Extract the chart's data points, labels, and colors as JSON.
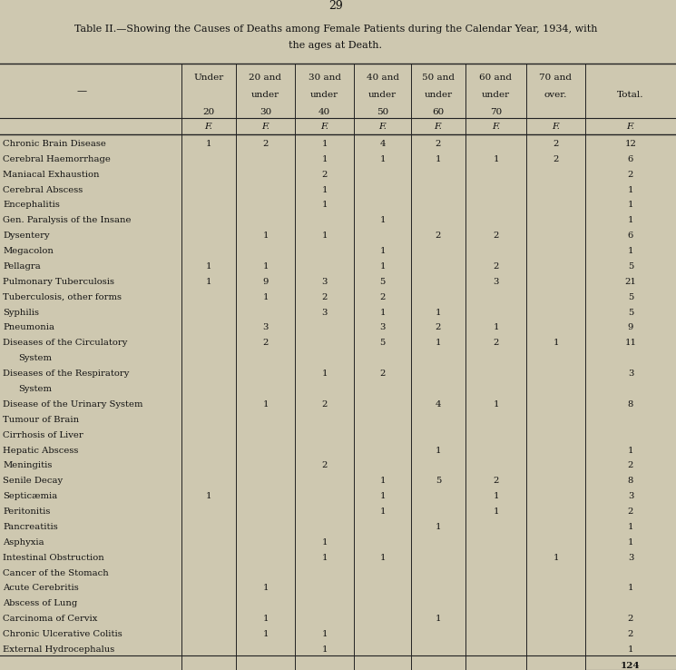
{
  "page_number": "29",
  "title_line1": "Table II.—Showing the Causes of Deaths among Female Patients during the Calendar Year, 1934, with",
  "title_line2": "the ages at Death.",
  "rows": [
    [
      "Chronic Brain Disease",
      "1",
      "2",
      "1",
      "4",
      "2",
      "",
      "2",
      "12"
    ],
    [
      "Cerebral Haemorrhage",
      "",
      "",
      "1",
      "1",
      "1",
      "1",
      "2",
      "6"
    ],
    [
      "Maniacal Exhaustion",
      "",
      "",
      "2",
      "",
      "",
      "",
      "",
      "2"
    ],
    [
      "Cerebral Abscess",
      "",
      "",
      "1",
      "",
      "",
      "",
      "",
      "1"
    ],
    [
      "Encephalitis",
      "",
      "",
      "1",
      "",
      "",
      "",
      "",
      "1"
    ],
    [
      "Gen. Paralysis of the Insane",
      "",
      "",
      "",
      "1",
      "",
      "",
      "",
      "1"
    ],
    [
      "Dysentery",
      "",
      "1",
      "1",
      "",
      "2",
      "2",
      "",
      "6"
    ],
    [
      "Megacolon",
      "",
      "",
      "",
      "1",
      "",
      "",
      "",
      "1"
    ],
    [
      "Pellagra",
      "1",
      "1",
      "",
      "1",
      "",
      "2",
      "",
      "5"
    ],
    [
      "Pulmonary Tuberculosis",
      "1",
      "9",
      "3",
      "5",
      "",
      "3",
      "",
      "21"
    ],
    [
      "Tuberculosis, other forms",
      "",
      "1",
      "2",
      "2",
      "",
      "",
      "",
      "5"
    ],
    [
      "Syphilis",
      "",
      "",
      "3",
      "1",
      "1",
      "",
      "",
      "5"
    ],
    [
      "Pneumonia",
      "",
      "3",
      "",
      "3",
      "2",
      "1",
      "",
      "9"
    ],
    [
      "Diseases of the Circulatory",
      "",
      "2",
      "",
      "5",
      "1",
      "2",
      "1",
      "11"
    ],
    [
      "  System",
      "",
      "",
      "",
      "",
      "",
      "",
      "",
      ""
    ],
    [
      "Diseases of the Respiratory",
      "",
      "",
      "1",
      "2",
      "",
      "",
      "",
      "3"
    ],
    [
      "  System",
      "",
      "",
      "",
      "",
      "",
      "",
      "",
      ""
    ],
    [
      "Disease of the Urinary System",
      "",
      "1",
      "2",
      "",
      "4",
      "1",
      "",
      "8"
    ],
    [
      "Tumour of Brain",
      "",
      "",
      "",
      "",
      "",
      "",
      "",
      ""
    ],
    [
      "Cirrhosis of Liver",
      "",
      "",
      "",
      "",
      "",
      "",
      "",
      ""
    ],
    [
      "Hepatic Abscess",
      "",
      "",
      "",
      "",
      "1",
      "",
      "",
      "1"
    ],
    [
      "Meningitis",
      "",
      "",
      "2",
      "",
      "",
      "",
      "",
      "2"
    ],
    [
      "Senile Decay",
      "",
      "",
      "",
      "1",
      "5",
      "2",
      "",
      "8"
    ],
    [
      "Septicæmia",
      "1",
      "",
      "",
      "1",
      "",
      "1",
      "",
      "3"
    ],
    [
      "Peritonitis",
      "",
      "",
      "",
      "1",
      "",
      "1",
      "",
      "2"
    ],
    [
      "Pancreatitis",
      "",
      "",
      "",
      "",
      "1",
      "",
      "",
      "1"
    ],
    [
      "Asphyxia",
      "",
      "",
      "1",
      "",
      "",
      "",
      "",
      "1"
    ],
    [
      "Intestinal Obstruction",
      "",
      "",
      "1",
      "1",
      "",
      "",
      "1",
      "3"
    ],
    [
      "Cancer of the Stomach",
      "",
      "",
      "",
      "",
      "",
      "",
      "",
      ""
    ],
    [
      "Acute Cerebritis",
      "",
      "1",
      "",
      "",
      "",
      "",
      "",
      "1"
    ],
    [
      "Abscess of Lung",
      "",
      "",
      "",
      "",
      "",
      "",
      "",
      ""
    ],
    [
      "Carcinoma of Cervix",
      "",
      "1",
      "",
      "",
      "1",
      "",
      "",
      "2"
    ],
    [
      "Chronic Ulcerative Colitis",
      "",
      "1",
      "1",
      "",
      "",
      "",
      "",
      "2"
    ],
    [
      "External Hydrocephalus",
      "",
      "",
      "1",
      "",
      "",
      "",
      "",
      "1"
    ]
  ],
  "total": "124",
  "bg_color": "#cec8b0",
  "text_color": "#111111",
  "line_color": "#222222"
}
